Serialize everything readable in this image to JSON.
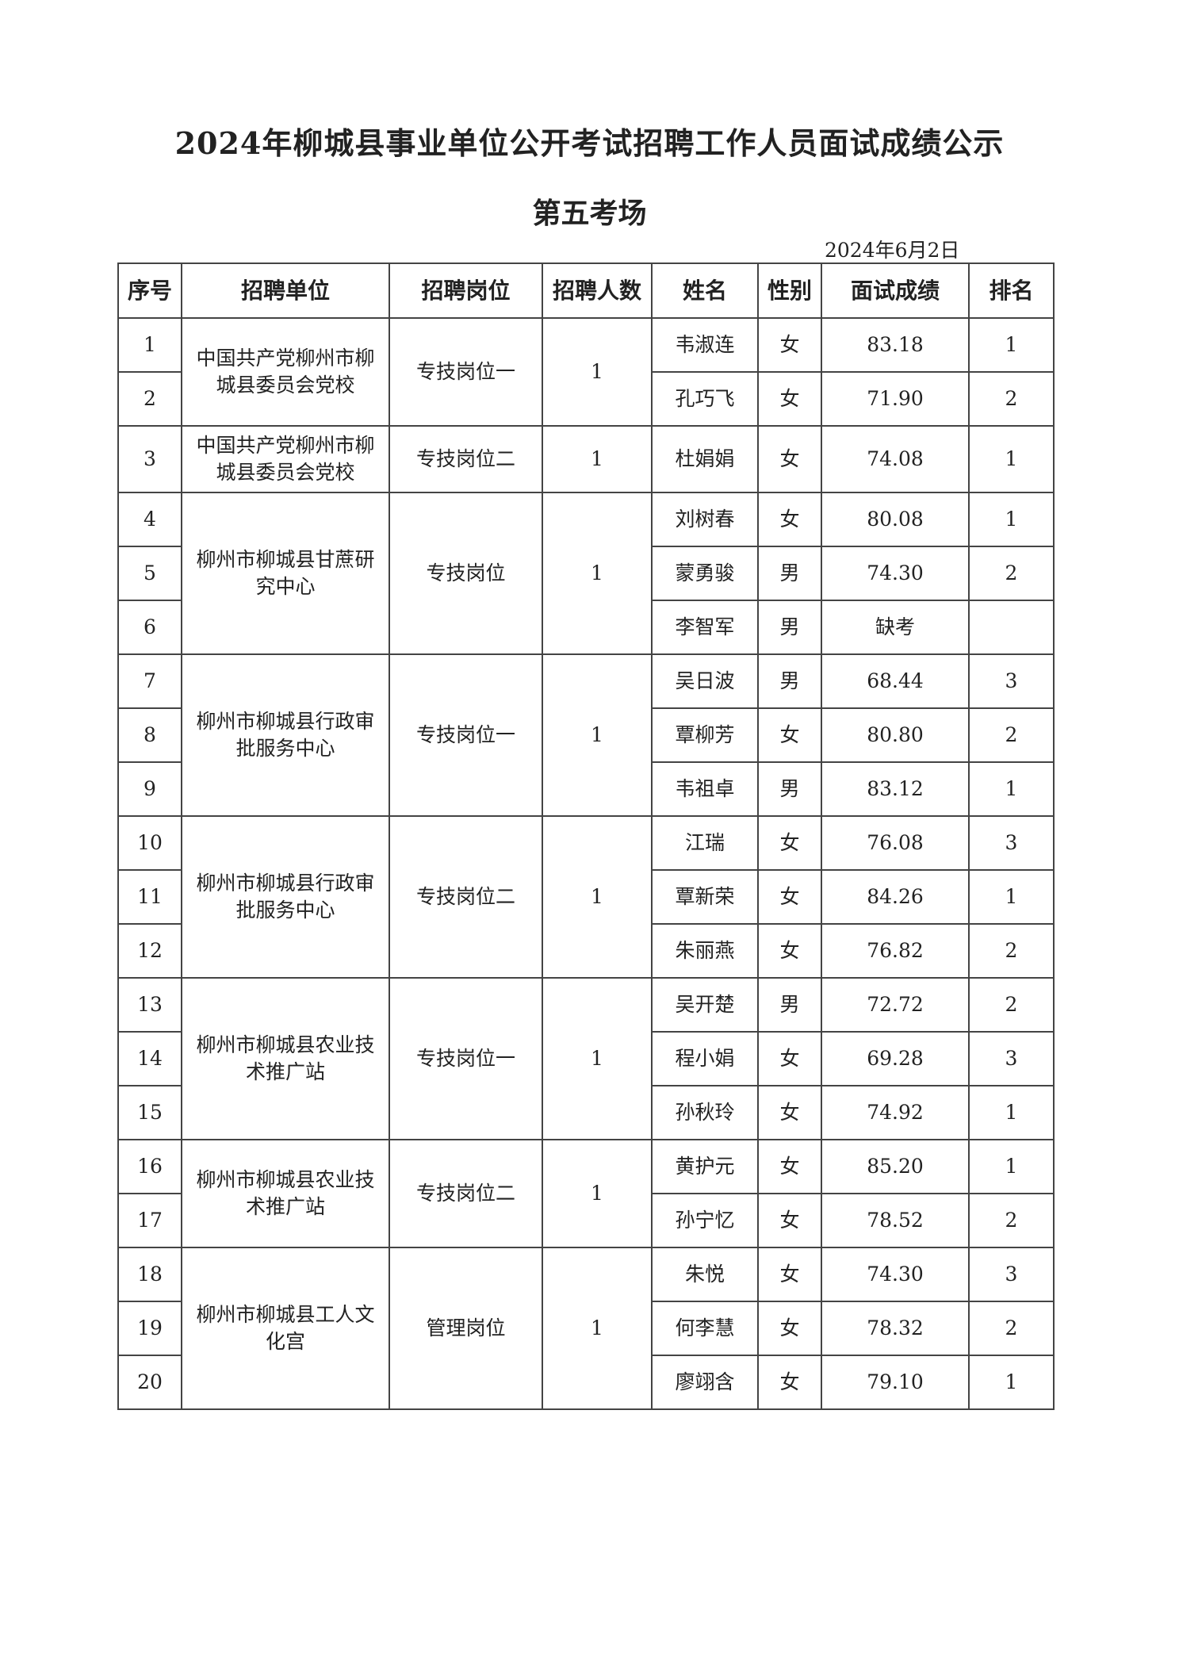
{
  "title": "2024年柳城县事业单位公开考试招聘工作人员面试成绩公示",
  "subtitle": "第五考场",
  "date": "2024年6月2日",
  "headers": [
    "序号",
    "招聘单位",
    "招聘岗位",
    "招聘人数",
    "姓名",
    "性别",
    "面试成绩",
    "排名"
  ],
  "groups": [
    {
      "unit": "中国共产党柳州市柳城县委员会党校",
      "post": "专技岗位一",
      "count": "1"
    },
    {
      "unit": "中国共产党柳州市柳城县委员会党校",
      "post": "专技岗位二",
      "count": "1"
    },
    {
      "unit": "柳州市柳城县甘蔗研究中心",
      "post": "专技岗位",
      "count": "1"
    },
    {
      "unit": "柳州市柳城县行政审批服务中心",
      "post": "专技岗位一",
      "count": "1"
    },
    {
      "unit": "柳州市柳城县行政审批服务中心",
      "post": "专技岗位二",
      "count": "1"
    },
    {
      "unit": "柳州市柳城县农业技术推广站",
      "post": "专技岗位一",
      "count": "1"
    },
    {
      "unit": "柳州市柳城县农业技术推广站",
      "post": "专技岗位二",
      "count": "1"
    },
    {
      "unit": "柳州市柳城县工人文化宫",
      "post": "管理岗位",
      "count": "1"
    }
  ],
  "rows": [
    {
      "no": "1",
      "name": "韦淑连",
      "gender": "女",
      "score": "83.18",
      "rank": "1"
    },
    {
      "no": "2",
      "name": "孔巧飞",
      "gender": "女",
      "score": "71.90",
      "rank": "2"
    },
    {
      "no": "3",
      "name": "杜娟娟",
      "gender": "女",
      "score": "74.08",
      "rank": "1"
    },
    {
      "no": "4",
      "name": "刘树春",
      "gender": "女",
      "score": "80.08",
      "rank": "1"
    },
    {
      "no": "5",
      "name": "蒙勇骏",
      "gender": "男",
      "score": "74.30",
      "rank": "2"
    },
    {
      "no": "6",
      "name": "李智军",
      "gender": "男",
      "score": "缺考",
      "rank": ""
    },
    {
      "no": "7",
      "name": "吴日波",
      "gender": "男",
      "score": "68.44",
      "rank": "3"
    },
    {
      "no": "8",
      "name": "覃柳芳",
      "gender": "女",
      "score": "80.80",
      "rank": "2"
    },
    {
      "no": "9",
      "name": "韦祖卓",
      "gender": "男",
      "score": "83.12",
      "rank": "1"
    },
    {
      "no": "10",
      "name": "江瑞",
      "gender": "女",
      "score": "76.08",
      "rank": "3"
    },
    {
      "no": "11",
      "name": "覃新荣",
      "gender": "女",
      "score": "84.26",
      "rank": "1"
    },
    {
      "no": "12",
      "name": "朱丽燕",
      "gender": "女",
      "score": "76.82",
      "rank": "2"
    },
    {
      "no": "13",
      "name": "吴开楚",
      "gender": "男",
      "score": "72.72",
      "rank": "2"
    },
    {
      "no": "14",
      "name": "程小娟",
      "gender": "女",
      "score": "69.28",
      "rank": "3"
    },
    {
      "no": "15",
      "name": "孙秋玲",
      "gender": "女",
      "score": "74.92",
      "rank": "1"
    },
    {
      "no": "16",
      "name": "黄护元",
      "gender": "女",
      "score": "85.20",
      "rank": "1"
    },
    {
      "no": "17",
      "name": "孙宁忆",
      "gender": "女",
      "score": "78.52",
      "rank": "2"
    },
    {
      "no": "18",
      "name": "朱悦",
      "gender": "女",
      "score": "74.30",
      "rank": "3"
    },
    {
      "no": "19",
      "name": "何李慧",
      "gender": "女",
      "score": "78.32",
      "rank": "2"
    },
    {
      "no": "20",
      "name": "廖翊含",
      "gender": "女",
      "score": "79.10",
      "rank": "1"
    }
  ]
}
